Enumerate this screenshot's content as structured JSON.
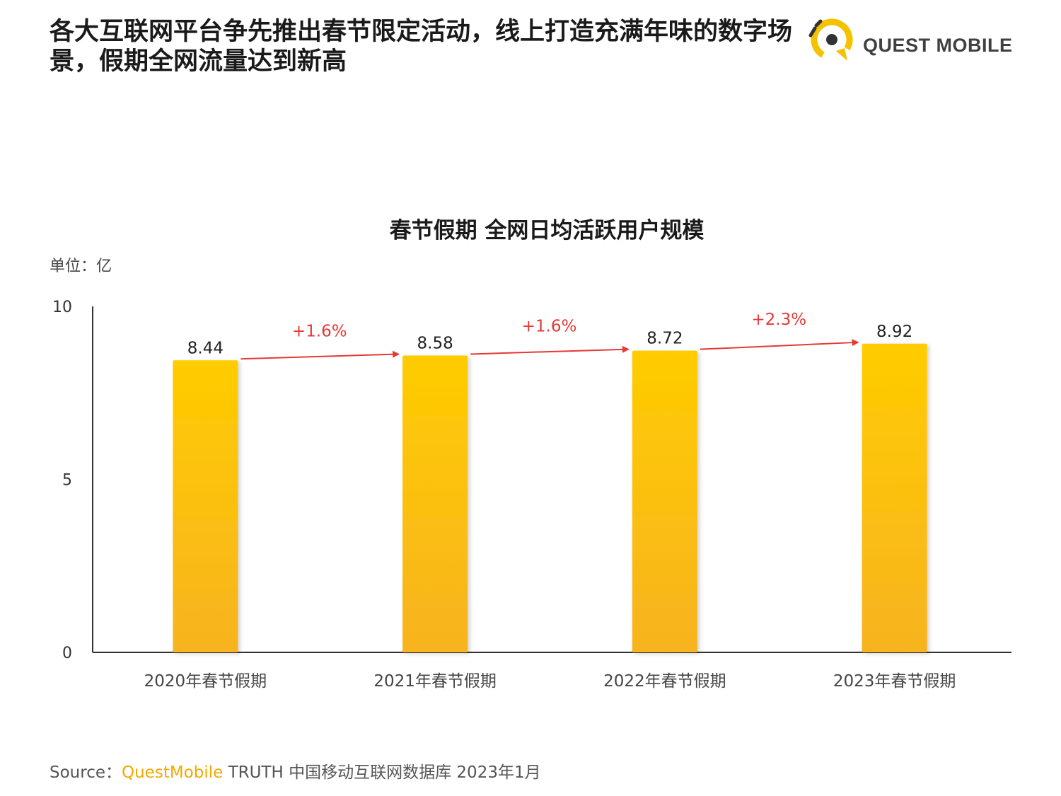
{
  "header": {
    "headline": "各大互联网平台争先推出春节限定活动，线上打造充满年味的数字场景，假期全网流量达到新高"
  },
  "logo": {
    "name": "QUEST MOBILE",
    "accent_color": "#f5c200",
    "icon": "quest-mobile-logo-icon"
  },
  "chart_data": {
    "type": "bar",
    "title": "春节假期 全网日均活跃用户规模",
    "unit_label": "单位：亿",
    "categories": [
      "2020年春节假期",
      "2021年春节假期",
      "2022年春节假期",
      "2023年春节假期"
    ],
    "values": [
      8.44,
      8.58,
      8.72,
      8.92
    ],
    "value_labels": [
      "8.44",
      "8.58",
      "8.72",
      "8.92"
    ],
    "growth_labels": [
      "+1.6%",
      "+1.6%",
      "+2.3%"
    ],
    "ylim": [
      0,
      10
    ],
    "yticks": [
      "0",
      "5",
      "10"
    ],
    "ytick_values": [
      0,
      5,
      10
    ],
    "grid": false,
    "bar_color_top": "#ffcc00",
    "bar_color_bottom": "#f7b320",
    "arrow_color": "#e53935"
  },
  "footer": {
    "source_prefix": "Source：",
    "source_brand": "QuestMobile",
    "source_rest": " TRUTH 中国移动互联网数据库 2023年1月"
  }
}
